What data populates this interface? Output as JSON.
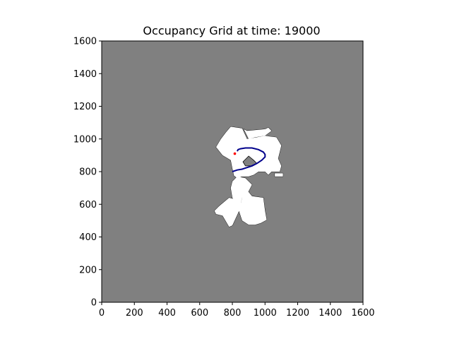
{
  "chart_data": {
    "type": "heatmap",
    "title": "Occupancy Grid at time: 19000",
    "xlabel": "",
    "ylabel": "",
    "xlim": [
      0,
      1600
    ],
    "ylim": [
      0,
      1600
    ],
    "x_ticks": [
      0,
      200,
      400,
      600,
      800,
      1000,
      1200,
      1400,
      1600
    ],
    "y_ticks": [
      0,
      200,
      400,
      600,
      800,
      1000,
      1200,
      1400,
      1600
    ],
    "grid": false,
    "colors": {
      "unknown": "#808080",
      "free": "#ffffff",
      "occupied": "#000000",
      "trajectory": "#00008b",
      "robot": "#ff0000"
    },
    "free_regions": [
      [
        [
          730,
          1000
        ],
        [
          760,
          1040
        ],
        [
          790,
          1075
        ],
        [
          860,
          1065
        ],
        [
          890,
          1000
        ],
        [
          950,
          1010
        ],
        [
          1000,
          1020
        ],
        [
          1030,
          1015
        ],
        [
          1070,
          1010
        ],
        [
          1100,
          960
        ],
        [
          1090,
          920
        ],
        [
          1080,
          880
        ],
        [
          1100,
          835
        ],
        [
          1090,
          800
        ],
        [
          1040,
          800
        ],
        [
          1020,
          780
        ],
        [
          1000,
          800
        ],
        [
          960,
          800
        ],
        [
          930,
          780
        ],
        [
          900,
          770
        ],
        [
          860,
          770
        ],
        [
          830,
          760
        ],
        [
          810,
          775
        ],
        [
          800,
          820
        ],
        [
          790,
          870
        ],
        [
          740,
          900
        ],
        [
          700,
          950
        ]
      ],
      [
        [
          830,
          770
        ],
        [
          880,
          760
        ],
        [
          920,
          720
        ],
        [
          900,
          680
        ],
        [
          860,
          640
        ],
        [
          850,
          600
        ],
        [
          830,
          570
        ],
        [
          820,
          610
        ],
        [
          800,
          640
        ],
        [
          790,
          700
        ],
        [
          800,
          740
        ]
      ],
      [
        [
          880,
          700
        ],
        [
          920,
          650
        ],
        [
          990,
          640
        ],
        [
          1000,
          560
        ],
        [
          1010,
          505
        ],
        [
          975,
          485
        ],
        [
          940,
          475
        ],
        [
          900,
          475
        ],
        [
          860,
          500
        ],
        [
          840,
          560
        ],
        [
          850,
          600
        ],
        [
          860,
          640
        ]
      ],
      [
        [
          840,
          625
        ],
        [
          860,
          600
        ],
        [
          800,
          470
        ],
        [
          780,
          462
        ],
        [
          740,
          530
        ],
        [
          700,
          540
        ],
        [
          690,
          560
        ],
        [
          720,
          590
        ],
        [
          780,
          640
        ]
      ],
      [
        [
          870,
          1060
        ],
        [
          890,
          1050
        ],
        [
          1000,
          1060
        ],
        [
          1020,
          1070
        ],
        [
          1040,
          1050
        ],
        [
          1000,
          1020
        ],
        [
          940,
          1010
        ],
        [
          900,
          1000
        ]
      ],
      [
        [
          1060,
          790
        ],
        [
          1110,
          790
        ],
        [
          1110,
          770
        ],
        [
          1060,
          770
        ]
      ]
    ],
    "obstacles": [
      [
        [
          865,
          860
        ],
        [
          900,
          895
        ],
        [
          930,
          870
        ],
        [
          950,
          850
        ],
        [
          915,
          835
        ],
        [
          880,
          835
        ]
      ]
    ],
    "trajectory": {
      "x": [
        800,
        830,
        860,
        890,
        920,
        950,
        980,
        1000,
        1000,
        990,
        960,
        920,
        880,
        850,
        835,
        830
      ],
      "y": [
        800,
        810,
        815,
        825,
        835,
        850,
        870,
        890,
        905,
        920,
        935,
        945,
        945,
        940,
        935,
        925
      ]
    },
    "robot_position": {
      "x": 815,
      "y": 910
    }
  }
}
